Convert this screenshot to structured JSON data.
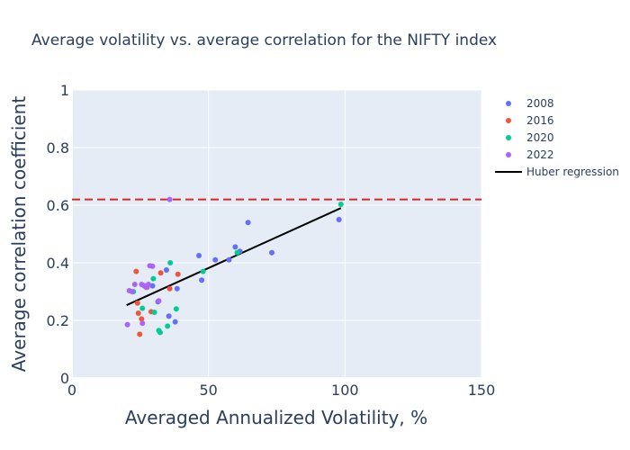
{
  "chart_data": {
    "type": "scatter",
    "title": "Average volatility vs. average correlation for the NIFTY index",
    "xlabel": "Averaged Annualized Volatility, %",
    "ylabel": "Average correlation coefficient",
    "xlim": [
      0,
      150
    ],
    "ylim": [
      0,
      1
    ],
    "x_ticks": [
      0,
      50,
      100,
      150
    ],
    "y_ticks": [
      0,
      0.2,
      0.4,
      0.6,
      0.8,
      1
    ],
    "x_tick_labels": [
      "0",
      "50",
      "100",
      "150"
    ],
    "y_tick_labels": [
      "0",
      "0.2",
      "0.4",
      "0.6",
      "0.8",
      "1"
    ],
    "grid": true,
    "legend_position": "right",
    "series": [
      {
        "name": "2008",
        "color": "#636efa",
        "points": [
          [
            97.8,
            0.55
          ],
          [
            73.2,
            0.435
          ],
          [
            64.5,
            0.54
          ],
          [
            61.5,
            0.44
          ],
          [
            59.8,
            0.455
          ],
          [
            57.5,
            0.41
          ],
          [
            52.5,
            0.41
          ],
          [
            47.5,
            0.34
          ],
          [
            46.5,
            0.425
          ],
          [
            38.5,
            0.31
          ],
          [
            37.8,
            0.195
          ],
          [
            35.5,
            0.215
          ],
          [
            34.6,
            0.375
          ],
          [
            31.5,
            0.265
          ],
          [
            29.5,
            0.32
          ],
          [
            26.5,
            0.32
          ]
        ]
      },
      {
        "name": "2016",
        "color": "#ef553b",
        "points": [
          [
            23.5,
            0.37
          ],
          [
            24.0,
            0.26
          ],
          [
            24.3,
            0.225
          ],
          [
            24.8,
            0.152
          ],
          [
            25.5,
            0.205
          ],
          [
            27.2,
            0.315
          ],
          [
            29.0,
            0.23
          ],
          [
            32.5,
            0.365
          ],
          [
            35.8,
            0.31
          ],
          [
            38.8,
            0.36
          ]
        ]
      },
      {
        "name": "2020",
        "color": "#00cc96",
        "points": [
          [
            98.5,
            0.603
          ],
          [
            60.5,
            0.435
          ],
          [
            48.0,
            0.37
          ],
          [
            38.2,
            0.24
          ],
          [
            36.0,
            0.4
          ],
          [
            35.0,
            0.18
          ],
          [
            32.3,
            0.158
          ],
          [
            31.8,
            0.165
          ],
          [
            30.2,
            0.228
          ],
          [
            29.8,
            0.345
          ],
          [
            25.8,
            0.242
          ],
          [
            22.5,
            0.3
          ]
        ]
      },
      {
        "name": "2022",
        "color": "#ab63fa",
        "points": [
          [
            35.8,
            0.62
          ],
          [
            31.8,
            0.268
          ],
          [
            29.5,
            0.388
          ],
          [
            28.5,
            0.39
          ],
          [
            28.0,
            0.325
          ],
          [
            27.5,
            0.315
          ],
          [
            26.5,
            0.32
          ],
          [
            25.5,
            0.325
          ],
          [
            23.0,
            0.325
          ],
          [
            21.0,
            0.303
          ],
          [
            22.0,
            0.3
          ],
          [
            20.3,
            0.185
          ],
          [
            25.8,
            0.19
          ]
        ]
      }
    ],
    "regression": {
      "name": "Huber regression",
      "color": "#000000",
      "x": [
        20,
        98.5
      ],
      "y": [
        0.253,
        0.59
      ]
    },
    "reference_line": {
      "y": 0.62,
      "color": "#d62728",
      "style": "dashed"
    }
  }
}
